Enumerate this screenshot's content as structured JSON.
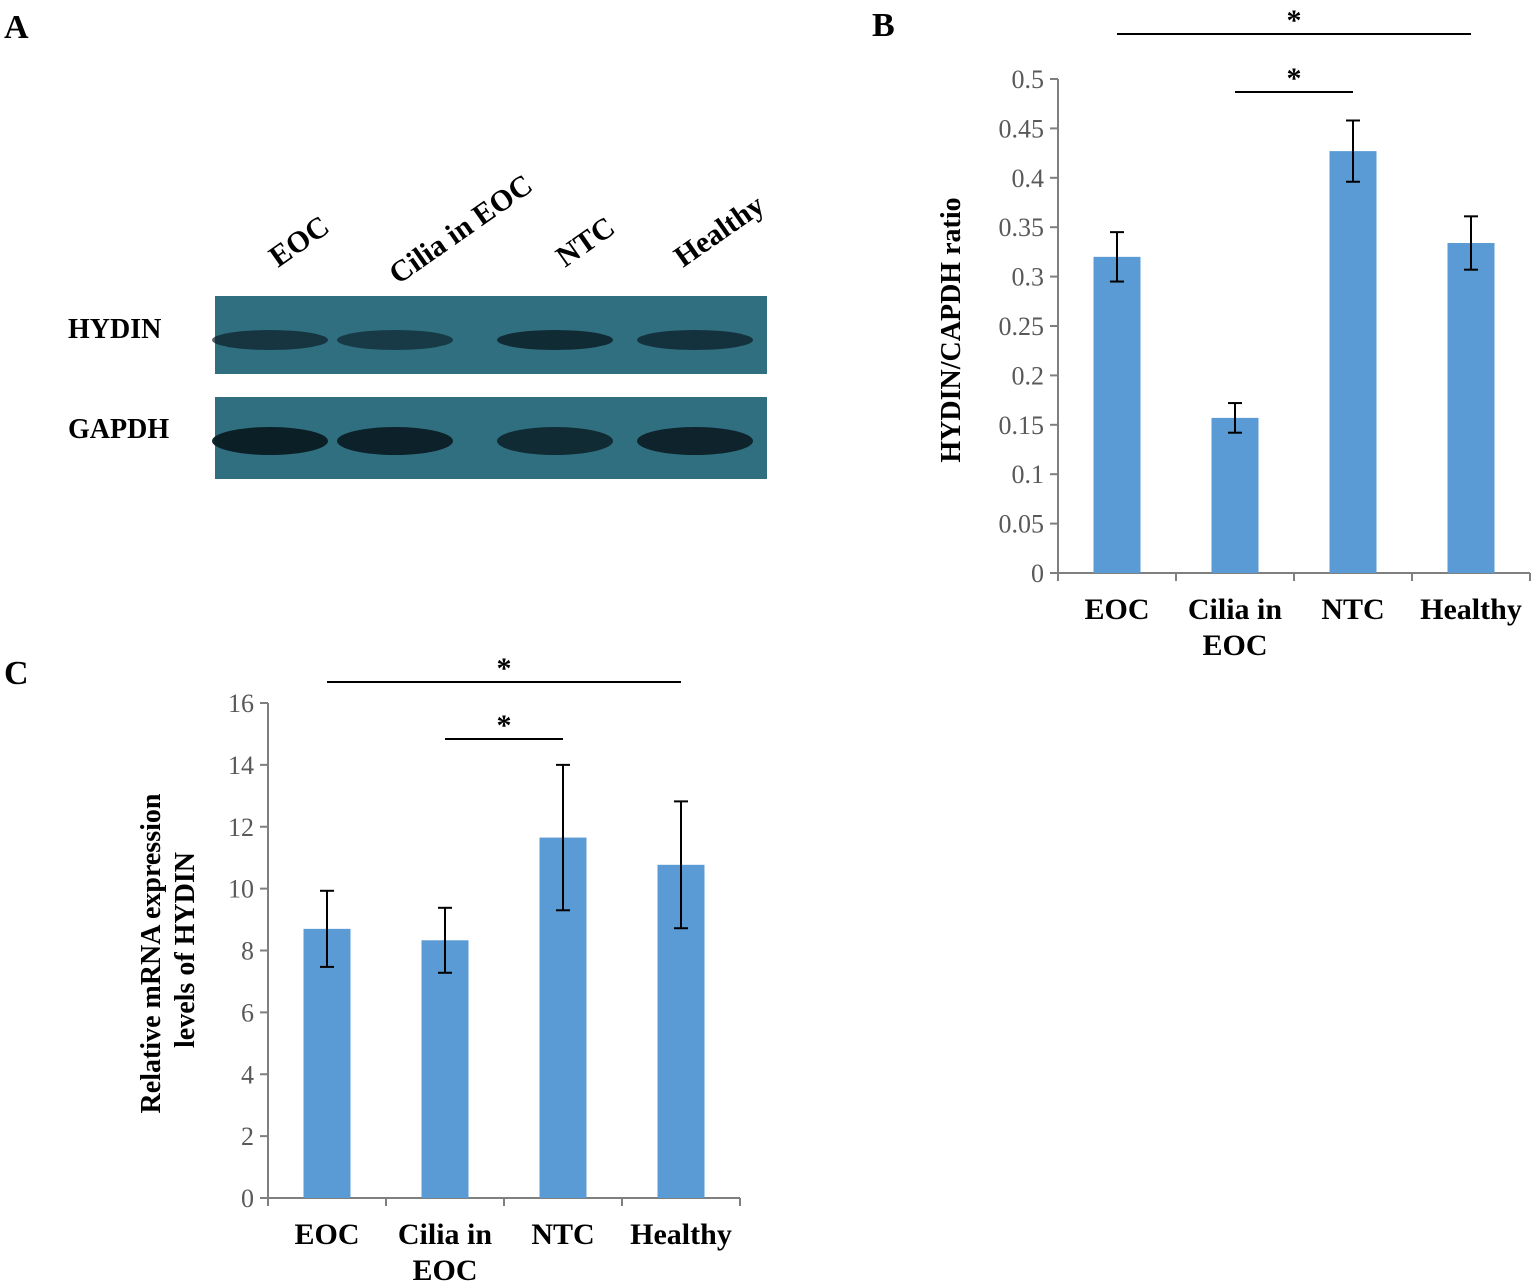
{
  "panel_a": {
    "letter": "A",
    "lanes": [
      "EOC",
      "Cilia in EOC",
      "NTC",
      "Healthy"
    ],
    "bands": [
      {
        "name": "HYDIN",
        "intensity": [
          0.55,
          0.45,
          0.75,
          0.6
        ]
      },
      {
        "name": "GAPDH",
        "intensity": [
          1.0,
          0.95,
          0.75,
          0.9
        ]
      }
    ],
    "membrane_color": "#2f6f80",
    "band_color": "#0a1a22"
  },
  "chart_data": [
    {
      "panel": "B",
      "type": "bar",
      "title": "",
      "categories": [
        [
          "EOC"
        ],
        [
          "Cilia in",
          "EOC"
        ],
        [
          "NTC"
        ],
        [
          "Healthy"
        ]
      ],
      "values": [
        0.32,
        0.157,
        0.427,
        0.334
      ],
      "errors": [
        0.025,
        0.015,
        0.031,
        0.027
      ],
      "ylabel": "HYDIN/CAPDH ratio",
      "xlabel": "",
      "ylim": [
        0,
        0.5
      ],
      "yticks": [
        0,
        0.05,
        0.1,
        0.15,
        0.2,
        0.25,
        0.3,
        0.35,
        0.4,
        0.45,
        0.5
      ],
      "ytick_labels": [
        "0",
        "0.05",
        "0.1",
        "0.15",
        "0.2",
        "0.25",
        "0.3",
        "0.35",
        "0.4",
        "0.45",
        "0.5"
      ],
      "grid": false,
      "bar_color": "#5b9bd5",
      "significance": [
        {
          "from": 0,
          "to": 3,
          "label": "*"
        },
        {
          "from": 1,
          "to": 2,
          "label": "*"
        }
      ]
    },
    {
      "panel": "C",
      "type": "bar",
      "title": "",
      "categories": [
        [
          "EOC"
        ],
        [
          "Cilia in",
          "EOC"
        ],
        [
          "NTC"
        ],
        [
          "Healthy"
        ]
      ],
      "values": [
        8.7,
        8.33,
        11.65,
        10.77
      ],
      "errors": [
        1.23,
        1.05,
        2.35,
        2.05
      ],
      "ylabel": [
        "Relative mRNA expression",
        "levels of HYDIN"
      ],
      "xlabel": "",
      "ylim": [
        0,
        16
      ],
      "yticks": [
        0,
        2,
        4,
        6,
        8,
        10,
        12,
        14,
        16
      ],
      "ytick_labels": [
        "0",
        "2",
        "4",
        "6",
        "8",
        "10",
        "12",
        "14",
        "16"
      ],
      "grid": false,
      "bar_color": "#5b9bd5",
      "significance": [
        {
          "from": 0,
          "to": 3,
          "label": "*"
        },
        {
          "from": 1,
          "to": 2,
          "label": "*"
        }
      ]
    }
  ]
}
